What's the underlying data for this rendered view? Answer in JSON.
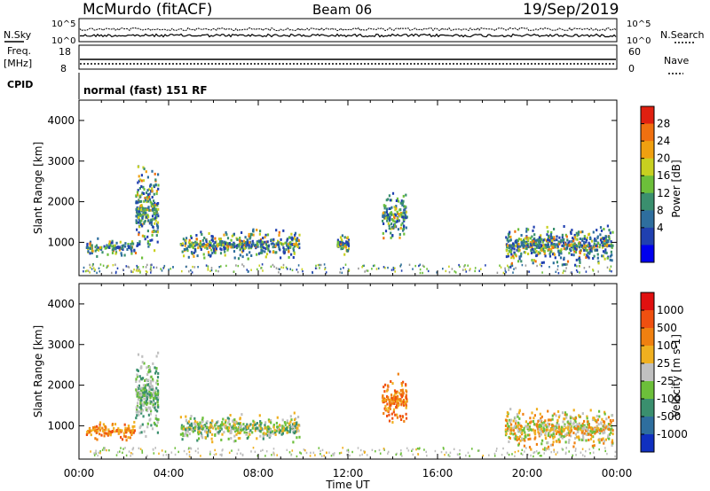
{
  "header": {
    "station": "McMurdo (fitACF)",
    "beam": "Beam 06",
    "date": "19/Sep/2019"
  },
  "noise_panel": {
    "left_label": "N.Sky",
    "right_label": "N.Search",
    "left_ticks": [
      "10^5",
      "10^0"
    ],
    "right_ticks": [
      "10^5",
      "10^0"
    ]
  },
  "freq_panel": {
    "left_label_1": "Freq.",
    "left_label_2": "[MHz]",
    "right_label": "Nave",
    "left_ticks": [
      "18",
      "8"
    ],
    "right_ticks": [
      "60",
      "0"
    ]
  },
  "cpid_panel": {
    "label": "CPID",
    "text": "normal (fast) 151 RF"
  },
  "chart_data": [
    {
      "type": "heatmap",
      "title": "",
      "xlabel": "Time UT",
      "ylabel": "Slant Range [km]",
      "ylim": [
        180,
        4500
      ],
      "xlim": [
        "00:00",
        "24:00"
      ],
      "y_ticks": [
        1000,
        2000,
        3000,
        4000
      ],
      "x_ticks": [
        "00:00",
        "04:00",
        "08:00",
        "12:00",
        "16:00",
        "20:00",
        "00:00"
      ],
      "colorbar": {
        "label": "Power [dB]",
        "ticks": [
          "28",
          "24",
          "20",
          "16",
          "12",
          "8",
          "4"
        ],
        "colors": [
          "#0000ee",
          "#2040b0",
          "#2e6e9e",
          "#3a8f6e",
          "#6cbf3a",
          "#c8d020",
          "#f0a010",
          "#f07010",
          "#e02010"
        ]
      },
      "features": [
        {
          "t_start": 0.3,
          "t_end": 2.5,
          "range_low": 700,
          "range_high": 1100,
          "level": "12-20 dB"
        },
        {
          "t_start": 2.5,
          "t_end": 3.5,
          "range_low": 800,
          "range_high": 2800,
          "level": "8-16 dB"
        },
        {
          "t_start": 4.5,
          "t_end": 9.8,
          "range_low": 650,
          "range_high": 1300,
          "level": "12-24 dB"
        },
        {
          "t_start": 11.5,
          "t_end": 12.0,
          "range_low": 750,
          "range_high": 1200,
          "level": "20-28 dB"
        },
        {
          "t_start": 13.5,
          "t_end": 14.6,
          "range_low": 1100,
          "range_high": 2200,
          "level": "12-20 dB"
        },
        {
          "t_start": 19.0,
          "t_end": 23.8,
          "range_low": 500,
          "range_high": 1400,
          "level": "12-28 dB"
        }
      ]
    },
    {
      "type": "heatmap",
      "title": "",
      "xlabel": "Time UT",
      "ylabel": "Slant Range [km]",
      "ylim": [
        180,
        4500
      ],
      "xlim": [
        "00:00",
        "24:00"
      ],
      "y_ticks": [
        1000,
        2000,
        3000,
        4000
      ],
      "x_ticks": [
        "00:00",
        "04:00",
        "08:00",
        "12:00",
        "16:00",
        "20:00",
        "00:00"
      ],
      "colorbar": {
        "label": "Velocity [m s-1]",
        "ticks": [
          "1000",
          "500",
          "100",
          "25",
          "-25",
          "-100",
          "-500",
          "-1000"
        ],
        "colors": [
          "#1030c0",
          "#2e6e9e",
          "#3a8f6e",
          "#6cbf3a",
          "#c0c0c0",
          "#f0b020",
          "#f08010",
          "#f05010",
          "#e01010"
        ]
      },
      "features": [
        {
          "t_start": 0.3,
          "t_end": 2.5,
          "range_low": 700,
          "range_high": 1100,
          "level": "-100 to -500 m/s"
        },
        {
          "t_start": 2.5,
          "t_end": 3.5,
          "range_low": 800,
          "range_high": 2800,
          "level": "25 to 100 m/s"
        },
        {
          "t_start": 4.5,
          "t_end": 9.8,
          "range_low": 650,
          "range_high": 1300,
          "level": "25 to 500 m/s"
        },
        {
          "t_start": 13.5,
          "t_end": 14.6,
          "range_low": 1100,
          "range_high": 2200,
          "level": "-100 to -500 m/s"
        },
        {
          "t_start": 19.0,
          "t_end": 23.8,
          "range_low": 500,
          "range_high": 1400,
          "level": "-500 to 100 m/s"
        }
      ]
    }
  ]
}
